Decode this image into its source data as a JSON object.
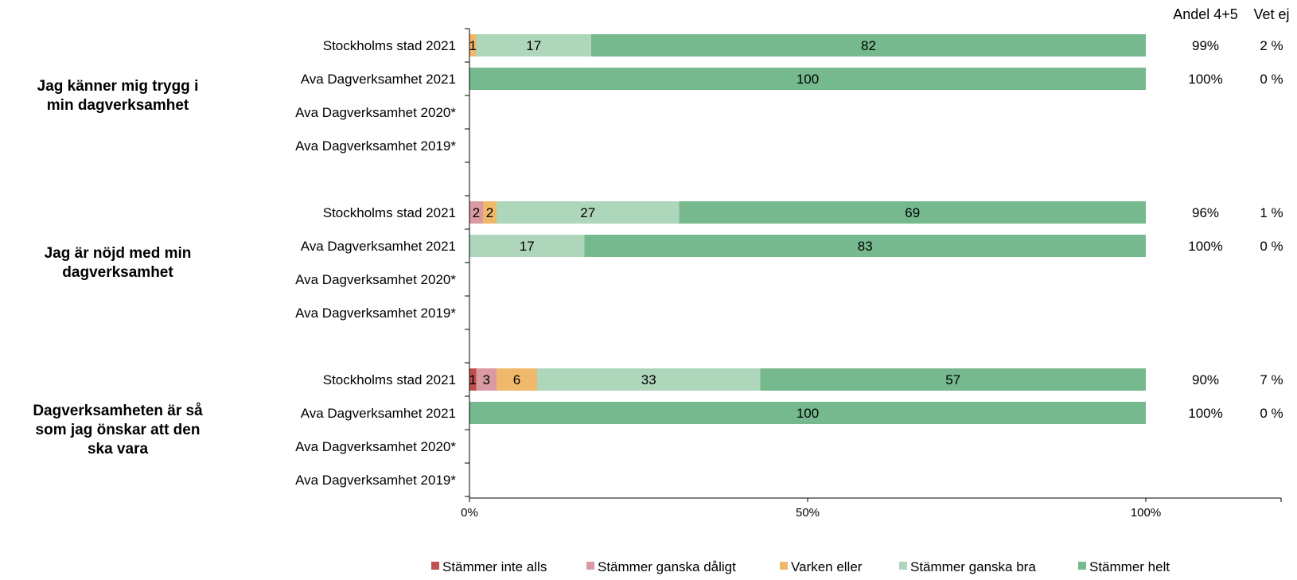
{
  "chart_data": {
    "type": "bar",
    "orientation": "horizontal",
    "stacked": true,
    "xlim": [
      0,
      100
    ],
    "xticks": [
      "0%",
      "50%",
      "100%"
    ],
    "grid": false,
    "legend_position": "bottom",
    "side_headers": [
      "Andel 4+5",
      "Vet ej"
    ],
    "series": [
      {
        "name": "Stämmer inte alls",
        "color": "#c0504d"
      },
      {
        "name": "Stämmer ganska dåligt",
        "color": "#d99aa3"
      },
      {
        "name": "Varken eller",
        "color": "#f0b86a"
      },
      {
        "name": "Stämmer ganska bra",
        "color": "#aed6bb"
      },
      {
        "name": "Stämmer helt",
        "color": "#76b98f"
      }
    ],
    "groups": [
      {
        "title": "Jag känner mig trygg i min dagverksamhet",
        "rows": [
          {
            "label": "Stockholms stad 2021",
            "values": [
              0,
              0,
              1,
              17,
              82
            ],
            "andel": "99%",
            "vet_ej": "2 %"
          },
          {
            "label": "Ava Dagverksamhet 2021",
            "values": [
              0,
              0,
              0,
              0,
              100
            ],
            "andel": "100%",
            "vet_ej": "0 %"
          },
          {
            "label": "Ava Dagverksamhet 2020*",
            "values": [],
            "andel": "",
            "vet_ej": ""
          },
          {
            "label": "Ava Dagverksamhet 2019*",
            "values": [],
            "andel": "",
            "vet_ej": ""
          }
        ]
      },
      {
        "title": "Jag är nöjd med min dagverksamhet",
        "rows": [
          {
            "label": "Stockholms stad 2021",
            "values": [
              0,
              2,
              2,
              27,
              69
            ],
            "andel": "96%",
            "vet_ej": "1 %"
          },
          {
            "label": "Ava Dagverksamhet 2021",
            "values": [
              0,
              0,
              0,
              17,
              83
            ],
            "andel": "100%",
            "vet_ej": "0 %"
          },
          {
            "label": "Ava Dagverksamhet 2020*",
            "values": [],
            "andel": "",
            "vet_ej": ""
          },
          {
            "label": "Ava Dagverksamhet 2019*",
            "values": [],
            "andel": "",
            "vet_ej": ""
          }
        ]
      },
      {
        "title": "Dagverksamheten är så som jag önskar att den ska vara",
        "rows": [
          {
            "label": "Stockholms stad 2021",
            "values": [
              1,
              3,
              6,
              33,
              57
            ],
            "andel": "90%",
            "vet_ej": "7 %"
          },
          {
            "label": "Ava Dagverksamhet 2021",
            "values": [
              0,
              0,
              0,
              0,
              100
            ],
            "andel": "100%",
            "vet_ej": "0 %"
          },
          {
            "label": "Ava Dagverksamhet 2020*",
            "values": [],
            "andel": "",
            "vet_ej": ""
          },
          {
            "label": "Ava Dagverksamhet 2019*",
            "values": [],
            "andel": "",
            "vet_ej": ""
          }
        ]
      }
    ]
  }
}
